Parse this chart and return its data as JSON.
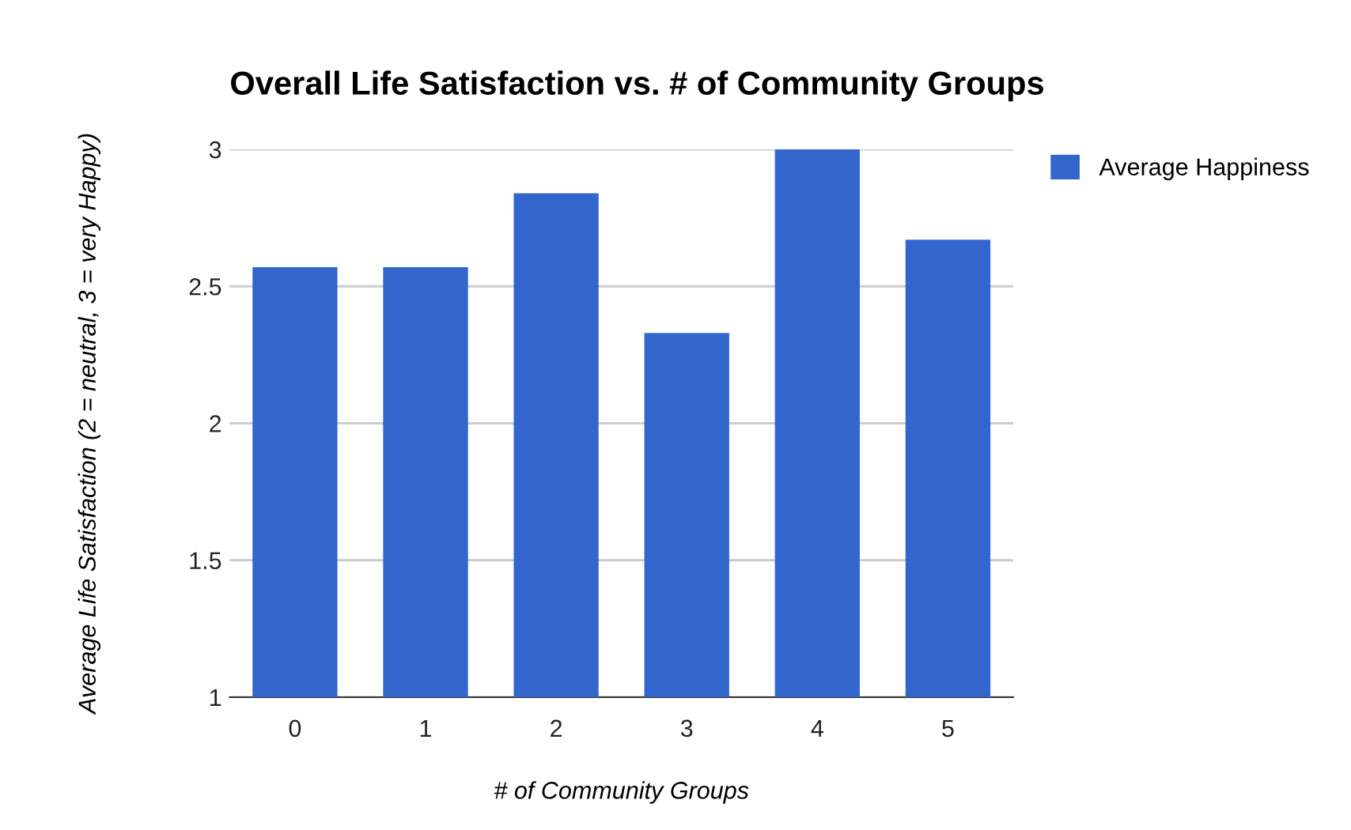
{
  "chart_data": {
    "type": "bar",
    "title": "Overall Life Satisfaction vs. # of Community Groups",
    "xlabel": "# of Community Groups",
    "ylabel": "Average Life Satisfaction (2 = neutral, 3 = very Happy)",
    "categories": [
      "0",
      "1",
      "2",
      "3",
      "4",
      "5"
    ],
    "series": [
      {
        "name": "Average Happiness",
        "color": "#3366cc",
        "values": [
          2.57,
          2.57,
          2.84,
          2.33,
          3.0,
          2.67
        ]
      }
    ],
    "ylim": [
      1,
      3
    ],
    "yticks": [
      1,
      1.5,
      2,
      2.5,
      3
    ],
    "grid": "y",
    "legend": "top right"
  }
}
